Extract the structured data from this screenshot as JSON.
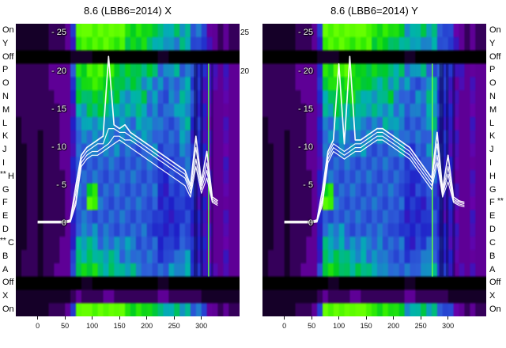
{
  "titles": {
    "left": "8.6 (LBB6=2014) X",
    "right": "8.6 (LBB6=2014) Y"
  },
  "axes": {
    "row_labels_left": [
      {
        "label": "On"
      },
      {
        "label": "Y"
      },
      {
        "label": "Off"
      },
      {
        "label": "P"
      },
      {
        "label": "O"
      },
      {
        "label": "N"
      },
      {
        "label": "M"
      },
      {
        "label": "L"
      },
      {
        "label": "K"
      },
      {
        "label": "J"
      },
      {
        "label": "I"
      },
      {
        "label": "H",
        "marker": "**"
      },
      {
        "label": "G"
      },
      {
        "label": "F"
      },
      {
        "label": "E"
      },
      {
        "label": "D"
      },
      {
        "label": "C",
        "marker": "**"
      },
      {
        "label": "B"
      },
      {
        "label": "A"
      },
      {
        "label": "Off"
      },
      {
        "label": "X"
      },
      {
        "label": "On"
      }
    ],
    "row_labels_right": [
      {
        "label": "On"
      },
      {
        "label": "Y"
      },
      {
        "label": "Off"
      },
      {
        "label": "P"
      },
      {
        "label": "O"
      },
      {
        "label": "N"
      },
      {
        "label": "M"
      },
      {
        "label": "L"
      },
      {
        "label": "K"
      },
      {
        "label": "J"
      },
      {
        "label": "I"
      },
      {
        "label": "H"
      },
      {
        "label": "G"
      },
      {
        "label": "F",
        "marker": "**"
      },
      {
        "label": "E"
      },
      {
        "label": "D"
      },
      {
        "label": "C"
      },
      {
        "label": "B"
      },
      {
        "label": "A"
      },
      {
        "label": "Off"
      },
      {
        "label": "X"
      },
      {
        "label": "On"
      }
    ],
    "y_tick_labels": [
      "- 25",
      "- 20",
      "- 15",
      "- 10",
      "- 5",
      "0"
    ],
    "y_tick_values": [
      25,
      20,
      15,
      10,
      5,
      0
    ],
    "gap_tick_labels": [
      {
        "label": "25",
        "value": 25
      },
      {
        "label": "20",
        "value": 20
      }
    ],
    "x_tick_labels": [
      "0",
      "50",
      "100",
      "150",
      "200",
      "250",
      "300"
    ],
    "x_tick_values": [
      0,
      50,
      100,
      150,
      200,
      250,
      300
    ]
  },
  "chart_data": [
    {
      "type": "heatmap",
      "title": "8.6 (LBB6=2014) X",
      "x_range": [
        -40,
        370
      ],
      "value_axis_range": [
        -12.2,
        26.3
      ],
      "x_ticks": [
        0,
        50,
        100,
        150,
        200,
        250,
        300
      ],
      "y_ticks": [
        25,
        20,
        15,
        10,
        5,
        0
      ],
      "row_labels": [
        "On",
        "Y",
        "Off",
        "P",
        "O",
        "N",
        "M",
        "L",
        "K",
        "J",
        "I",
        "H",
        "G",
        "F",
        "E",
        "D",
        "C",
        "B",
        "A",
        "Off",
        "X",
        "On"
      ],
      "palette_stops": [
        [
          0,
          "#000000"
        ],
        [
          0.1,
          "#20003c"
        ],
        [
          0.22,
          "#6a00a8"
        ],
        [
          0.38,
          "#1f1fc8"
        ],
        [
          0.55,
          "#2e62d9"
        ],
        [
          0.68,
          "#00b2b2"
        ],
        [
          0.8,
          "#00cc22"
        ],
        [
          0.9,
          "#33ee00"
        ],
        [
          1,
          "#66ff00"
        ]
      ],
      "grid": {
        "x_start": -40,
        "x_step": 10,
        "cols": 41,
        "value_scale": "hex char 0-15 per cell",
        "rows": [
          "11111122236fffffffffddddccaabbaa887432322",
          "11111122235eeeeeeeeeccccbbaa99aa877432322",
          "00000000001111000000000000110000000000000",
          "22222233337ddeeeddccccbbbb99aa88876543433",
          "22222233336ccddddccbbbbaa99888aa765443433",
          "22222223336bbccccbbaaabb998899aa765433433",
          "22222222335aabbbbbaaaaaa998899aa765433433",
          "1222222233599aaaa99999aa998888aa665433433",
          "12221222335999999999999999888899665433433",
          "11221222335888999998888899778899665433433",
          "11221222335888888888888888777788665433433",
          "11221222235888888888888888667788655433433",
          "1122122223588dd88888888888667777655433433",
          "1122122223588ee88888888888666677655433433",
          "11221222235888888888888877666677655433433",
          "11221222235999988888888877666677655433433",
          "11221222336aaaa99999998888667788665433433",
          "12221222336bbbbaaaa9998888778899665433433",
          "12221223337ccccbbbbaaa99888899aa765443433",
          "00000000000011000000000000110000000000000",
          "11111111112322223322222222332222221111111",
          "11111122236fffffffffddddccaabbaa887432322"
        ]
      },
      "overlay_lines": {
        "color": "#ffffff",
        "x_start": 0,
        "x_step": 10,
        "series": [
          [
            0.3,
            0.3,
            0.3,
            0.3,
            0.3,
            0.3,
            0.5,
            5.0,
            9.0,
            10.0,
            10.5,
            11.0,
            11.5,
            22.0,
            13.0,
            12.5,
            13.0,
            12.0,
            11.5,
            11.0,
            10.5,
            10.0,
            9.5,
            9.0,
            8.5,
            8.0,
            7.5,
            7.0,
            5.0,
            11.5,
            5.5,
            9.5,
            3.5,
            3.0
          ],
          [
            0.2,
            0.2,
            0.2,
            0.2,
            0.2,
            0.2,
            0.4,
            4.0,
            8.5,
            9.5,
            10.0,
            10.5,
            10.5,
            12.5,
            12.5,
            12.0,
            12.0,
            11.5,
            11.0,
            10.5,
            10.0,
            9.5,
            9.0,
            8.5,
            8.0,
            7.5,
            7.0,
            6.5,
            4.5,
            10.0,
            5.0,
            8.0,
            3.2,
            2.8
          ],
          [
            0.1,
            0.1,
            0.1,
            0.1,
            0.1,
            0.1,
            0.3,
            3.0,
            8.0,
            9.0,
            9.5,
            9.5,
            10.0,
            10.5,
            11.5,
            11.5,
            11.0,
            11.0,
            10.5,
            10.0,
            9.5,
            9.0,
            8.5,
            8.0,
            7.5,
            7.0,
            6.5,
            6.0,
            4.0,
            8.5,
            4.5,
            7.0,
            3.0,
            2.6
          ],
          [
            0.1,
            0.1,
            0.1,
            0.1,
            0.1,
            0.1,
            0.2,
            2.5,
            7.5,
            8.5,
            9.0,
            9.0,
            9.5,
            10.0,
            10.5,
            11.0,
            10.5,
            10.0,
            9.5,
            9.0,
            8.5,
            8.0,
            7.5,
            7.0,
            6.5,
            6.0,
            5.5,
            5.0,
            3.5,
            7.5,
            4.0,
            6.0,
            2.8,
            2.4
          ]
        ]
      },
      "vertical_features": [
        {
          "x": 286,
          "w": 7,
          "color": "rgba(8,0,60,0.45)"
        },
        {
          "x": 298,
          "w": 5,
          "color": "rgba(8,0,60,0.40)"
        },
        {
          "x": 312,
          "w": 2.5,
          "color": "rgba(96,255,64,0.85)"
        },
        {
          "x": 318,
          "w": 4,
          "color": "rgba(8,0,60,0.35)"
        }
      ]
    },
    {
      "type": "heatmap",
      "title": "8.6 (LBB6=2014) Y",
      "x_range": [
        -40,
        370
      ],
      "value_axis_range": [
        -12.2,
        26.3
      ],
      "x_ticks": [
        0,
        50,
        100,
        150,
        200,
        250,
        300
      ],
      "y_ticks": [
        25,
        20,
        15,
        10,
        5,
        0
      ],
      "row_labels": [
        "On",
        "Y",
        "Off",
        "P",
        "O",
        "N",
        "M",
        "L",
        "K",
        "J",
        "I",
        "H",
        "G",
        "F",
        "E",
        "D",
        "C",
        "B",
        "A",
        "Off",
        "X",
        "On"
      ],
      "palette_stops": [
        [
          0,
          "#000000"
        ],
        [
          0.1,
          "#20003c"
        ],
        [
          0.22,
          "#6a00a8"
        ],
        [
          0.38,
          "#1f1fc8"
        ],
        [
          0.55,
          "#2e62d9"
        ],
        [
          0.68,
          "#00b2b2"
        ],
        [
          0.8,
          "#00cc22"
        ],
        [
          0.9,
          "#33ee00"
        ],
        [
          1,
          "#66ff00"
        ]
      ],
      "grid": {
        "x_start": -40,
        "x_step": 10,
        "cols": 41,
        "value_scale": "hex char 0-15 per cell",
        "rows": [
          "11111122236fffffffffddddccaabbaa887432322",
          "11111122235eeeeeeeeeccccbbaa99aa877432322",
          "00000000001111000000000000110000000000000",
          "22222233337ddeeeddccccbbbb99aa88876543433",
          "22222233336ccddddccbbbbaa99888aa765443433",
          "22222223336bbccccbbaaabb998899aa765433433",
          "22222222335aabbbbbaaaaaa998899aa765433433",
          "1222222233599aaaa99999aa998888aa665433433",
          "12221222335999999999999999888899665433433",
          "11221222335888999998888899778899665433433",
          "11221222335888888888888888777788665433433",
          "11221222235888888888888888667788655433433",
          "11221222235dd8888888888888667777655433433",
          "11221222235ee8888888888888666677655433433",
          "11221222235888888888888877666677655433433",
          "11221222235999988888888877666677655433433",
          "11221222336aaaa99999998888667788665433433",
          "12221222336bbbbaaaa9998888778899665433433",
          "12221223337ccccbbbbaaa99888899aa765443433",
          "00000000000011000000000000110000000000000",
          "11111111112322223322222222332222221111111",
          "11111122236fffffffffddddccaabbaa887432322"
        ]
      },
      "overlay_lines": {
        "color": "#ffffff",
        "x_start": 0,
        "x_step": 10,
        "series": [
          [
            0.3,
            0.3,
            0.3,
            0.3,
            0.3,
            0.3,
            0.5,
            4.5,
            9.5,
            11.0,
            21.0,
            10.5,
            22.0,
            11.0,
            11.0,
            11.5,
            12.0,
            12.5,
            12.5,
            12.0,
            11.5,
            11.0,
            10.5,
            10.0,
            9.0,
            8.0,
            7.0,
            6.0,
            12.0,
            4.5,
            9.0,
            3.5,
            3.0,
            2.8
          ],
          [
            0.2,
            0.2,
            0.2,
            0.2,
            0.2,
            0.2,
            0.4,
            3.5,
            9.0,
            10.5,
            10.0,
            9.5,
            10.0,
            10.5,
            10.5,
            11.0,
            11.5,
            12.0,
            12.0,
            11.5,
            11.0,
            10.5,
            10.0,
            9.5,
            8.5,
            7.5,
            6.5,
            5.5,
            10.5,
            4.0,
            7.5,
            3.2,
            2.8,
            2.6
          ],
          [
            0.1,
            0.1,
            0.1,
            0.1,
            0.1,
            0.1,
            0.3,
            3.0,
            8.5,
            10.0,
            9.5,
            9.0,
            9.5,
            10.0,
            10.0,
            10.5,
            11.0,
            11.5,
            11.5,
            11.0,
            10.5,
            10.0,
            9.5,
            9.0,
            8.0,
            7.0,
            6.0,
            5.0,
            9.0,
            3.8,
            6.5,
            3.0,
            2.6,
            2.4
          ],
          [
            0.1,
            0.1,
            0.1,
            0.1,
            0.1,
            0.1,
            0.2,
            2.5,
            8.0,
            9.5,
            9.0,
            8.5,
            9.0,
            9.5,
            9.5,
            10.0,
            10.5,
            11.0,
            11.0,
            10.5,
            10.0,
            9.5,
            9.0,
            8.5,
            7.5,
            6.5,
            5.5,
            4.5,
            8.0,
            3.5,
            5.5,
            2.8,
            2.4,
            2.2
          ]
        ]
      },
      "vertical_features": [
        {
          "x": 270,
          "w": 2.5,
          "color": "rgba(96,255,64,0.9)"
        },
        {
          "x": 284,
          "w": 8,
          "color": "rgba(8,0,60,0.50)"
        },
        {
          "x": 296,
          "w": 5,
          "color": "rgba(8,0,60,0.40)"
        },
        {
          "x": 308,
          "w": 5,
          "color": "rgba(8,0,60,0.40)"
        }
      ]
    }
  ]
}
